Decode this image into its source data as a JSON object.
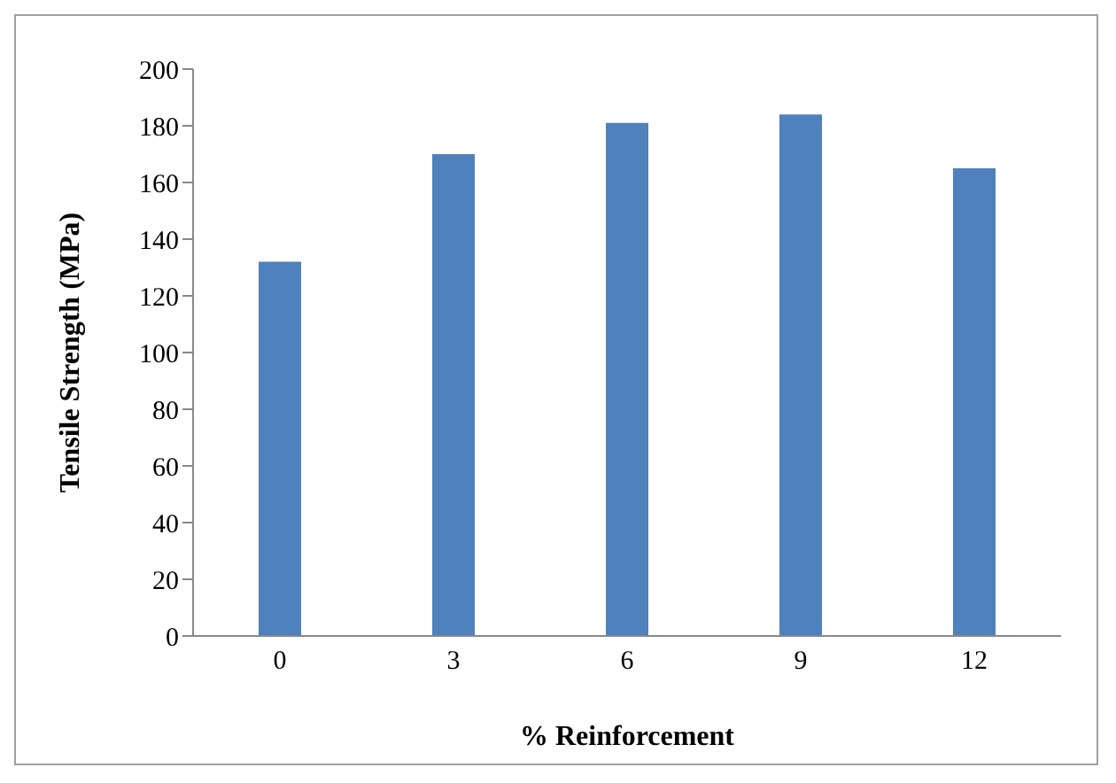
{
  "chart_data": {
    "type": "bar",
    "xlabel": "% Reinforcement",
    "ylabel": "Tensile Strength (MPa)",
    "categories": [
      "0",
      "3",
      "6",
      "9",
      "12"
    ],
    "values": [
      132,
      170,
      181,
      184,
      165
    ],
    "color": "#4f81bd",
    "ylim": [
      0,
      200
    ],
    "yticks": [
      0,
      20,
      40,
      60,
      80,
      100,
      120,
      140,
      160,
      180,
      200
    ],
    "grid": false,
    "legend": false
  }
}
